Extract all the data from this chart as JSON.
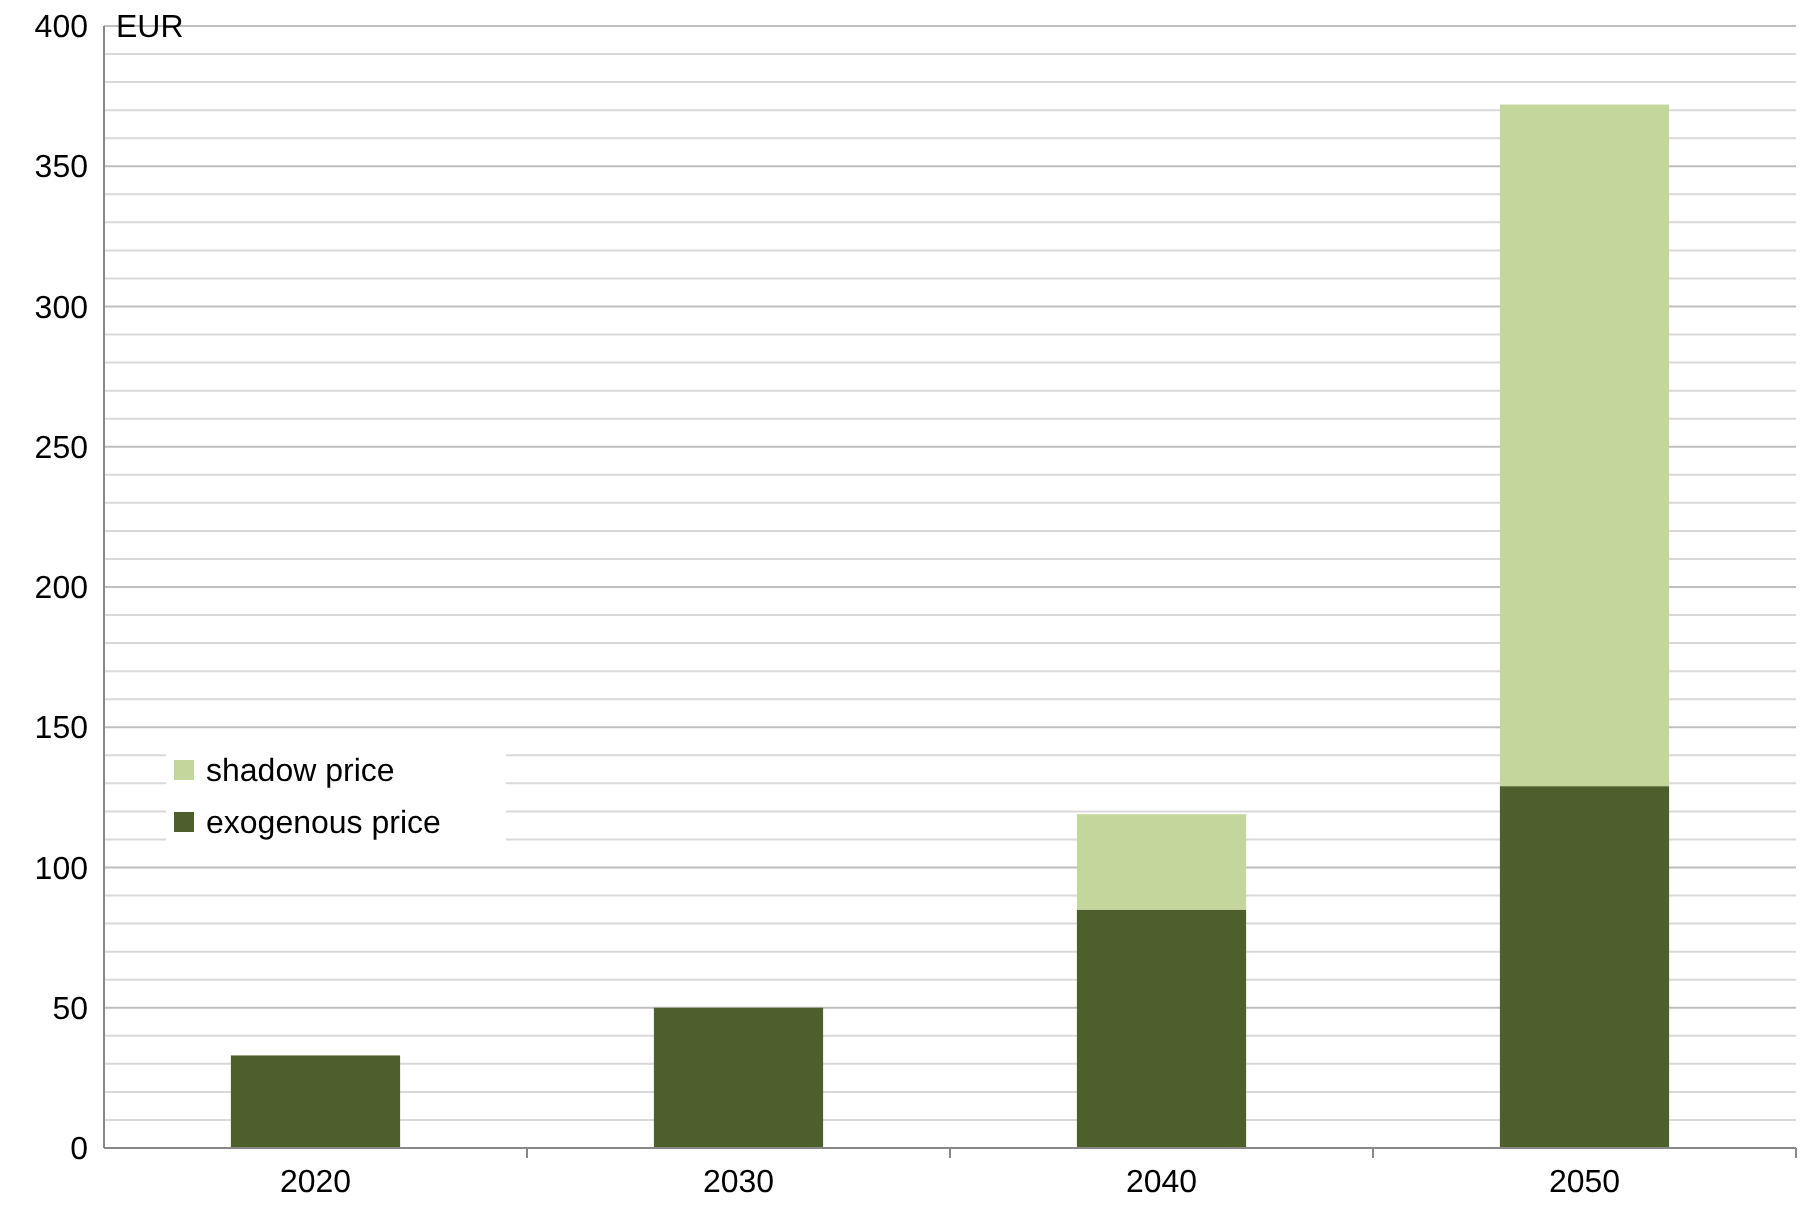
{
  "chart_data": {
    "type": "bar",
    "ylabel": "EUR",
    "categories": [
      "2020",
      "2030",
      "2040",
      "2050"
    ],
    "stacked": true,
    "legend": "left",
    "grid": "y",
    "series": [
      {
        "name": "exogenous price",
        "color": "#4d5f2b",
        "values": [
          33,
          50,
          85,
          129
        ]
      },
      {
        "name": "shadow price",
        "color": "#c3d69b",
        "values": [
          0,
          0,
          34,
          243
        ]
      }
    ],
    "ylim": [
      0,
      400
    ],
    "yticks": [
      0,
      {
        "value": 10,
        "label": null
      },
      {
        "value": 20,
        "label": null
      },
      {
        "value": 30,
        "label": null
      },
      {
        "value": 40,
        "label": null
      },
      50,
      {
        "value": 60,
        "label": null
      },
      {
        "value": 70,
        "label": null
      },
      {
        "value": 80,
        "label": null
      },
      {
        "value": 90,
        "label": null
      },
      100,
      {
        "value": 110,
        "label": null
      },
      {
        "value": 120,
        "label": null
      },
      {
        "value": 130,
        "label": null
      },
      {
        "value": 140,
        "label": null
      },
      150,
      {
        "value": 160,
        "label": null
      },
      {
        "value": 170,
        "label": null
      },
      {
        "value": 180,
        "label": null
      },
      {
        "value": 190,
        "label": null
      },
      200,
      {
        "value": 210,
        "label": null
      },
      {
        "value": 220,
        "label": null
      },
      {
        "value": 230,
        "label": null
      },
      {
        "value": 240,
        "label": null
      },
      250,
      {
        "value": 260,
        "label": null
      },
      {
        "value": 270,
        "label": null
      },
      {
        "value": 280,
        "label": null
      },
      {
        "value": 290,
        "label": null
      },
      300,
      {
        "value": 310,
        "label": null
      },
      {
        "value": 320,
        "label": null
      },
      {
        "value": 330,
        "label": null
      },
      {
        "value": 340,
        "label": null
      },
      350,
      {
        "value": 360,
        "label": null
      },
      {
        "value": 370,
        "label": null
      },
      {
        "value": 380,
        "label": null
      },
      {
        "value": 390,
        "label": null
      },
      400
    ]
  }
}
